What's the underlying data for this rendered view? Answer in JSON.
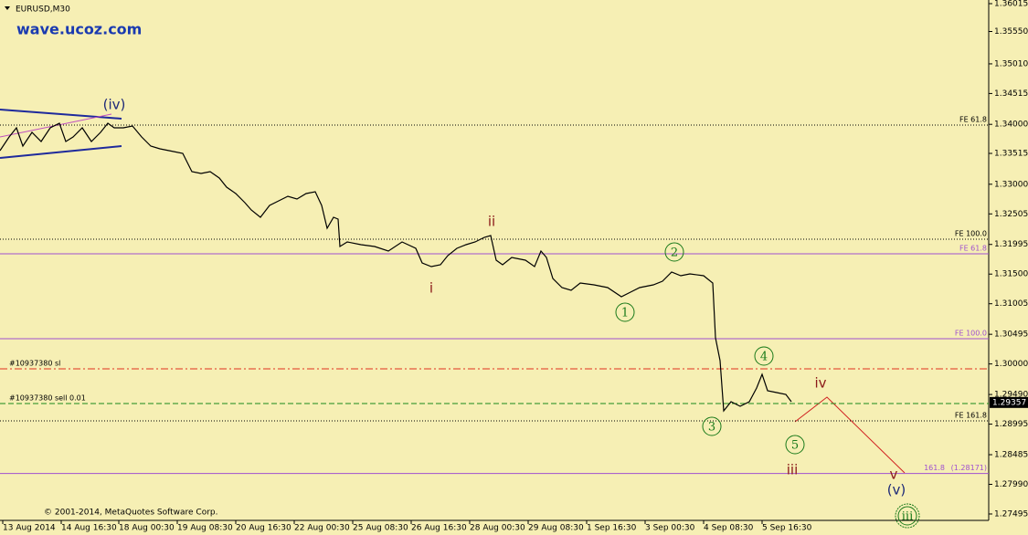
{
  "chart_data": {
    "type": "line",
    "title": "EURUSD,M30",
    "watermark": "wave.ucoz.com",
    "copyright": "© 2001-2014, MetaQuotes Software Corp.",
    "background": "#f6efb4",
    "xlim": [
      0,
      1082
    ],
    "ylim": [
      1.27388,
      1.36076
    ],
    "xticks": [
      {
        "value": 3,
        "label": "13 Aug 2014"
      },
      {
        "value": 67,
        "label": "14 Aug 16:30"
      },
      {
        "value": 130,
        "label": "18 Aug 00:30"
      },
      {
        "value": 194,
        "label": "19 Aug 08:30"
      },
      {
        "value": 258,
        "label": "20 Aug 16:30"
      },
      {
        "value": 322,
        "label": "22 Aug 00:30"
      },
      {
        "value": 386,
        "label": "25 Aug 08:30"
      },
      {
        "value": 450,
        "label": "26 Aug 16:30"
      },
      {
        "value": 514,
        "label": "28 Aug 00:30"
      },
      {
        "value": 578,
        "label": "29 Aug 08:30"
      },
      {
        "value": 642,
        "label": "1 Sep 16:30"
      },
      {
        "value": 706,
        "label": "3 Sep 00:30"
      },
      {
        "value": 770,
        "label": "4 Sep 08:30"
      },
      {
        "value": 834,
        "label": "5 Sep 16:30"
      }
    ],
    "yticks": [
      1.36015,
      {
        "value": 1.3555,
        "label": "1.35550"
      },
      {
        "value": 1.3501,
        "label": "1.35010"
      },
      1.34515,
      {
        "value": 1.34,
        "label": "1.34000"
      },
      1.33515,
      {
        "value": 1.33,
        "label": "1.33000"
      },
      1.32505,
      1.31995,
      {
        "value": 1.315,
        "label": "1.31500"
      },
      1.31005,
      1.30495,
      {
        "value": 1.3,
        "label": "1.30000"
      },
      {
        "value": 1.2949,
        "label": "1.29490"
      },
      1.28995,
      1.28485,
      {
        "value": 1.2799,
        "label": "1.27990"
      },
      1.27495
    ],
    "current_price": 1.29357,
    "series": [
      {
        "name": "EURUSD",
        "color": "#000000",
        "x": [
          0,
          10,
          18,
          25,
          35,
          45,
          55,
          65,
          72,
          80,
          90,
          100,
          110,
          118,
          125,
          135,
          145,
          155,
          165,
          175,
          185,
          200,
          210,
          220,
          230,
          240,
          248,
          258,
          268,
          275,
          285,
          295,
          305,
          315,
          325,
          335,
          345,
          352,
          358,
          365,
          370,
          372,
          380,
          395,
          410,
          425,
          440,
          455,
          462,
          472,
          482,
          490,
          500,
          510,
          520,
          530,
          537,
          543,
          550,
          560,
          575,
          585,
          592,
          598,
          605,
          615,
          625,
          635,
          650,
          665,
          680,
          690,
          700,
          715,
          725,
          735,
          745,
          755,
          770,
          780,
          783,
          788,
          792,
          800,
          810,
          820,
          828,
          834,
          840,
          850,
          860,
          866
        ],
        "values": [
          1.33561,
          1.3379,
          1.33942,
          1.33637,
          1.33866,
          1.33714,
          1.33942,
          1.34018,
          1.33714,
          1.3379,
          1.33942,
          1.33714,
          1.33866,
          1.34018,
          1.33942,
          1.33942,
          1.33973,
          1.3379,
          1.33637,
          1.33592,
          1.33561,
          1.33515,
          1.3321,
          1.3318,
          1.3321,
          1.33104,
          1.32951,
          1.32845,
          1.32692,
          1.3257,
          1.32448,
          1.32647,
          1.32723,
          1.32799,
          1.32753,
          1.32845,
          1.32875,
          1.32647,
          1.32265,
          1.32448,
          1.32418,
          1.31961,
          1.32037,
          1.31991,
          1.31961,
          1.31884,
          1.32037,
          1.3193,
          1.31686,
          1.31625,
          1.31656,
          1.31808,
          1.3193,
          1.31991,
          1.32037,
          1.32113,
          1.32144,
          1.31732,
          1.31656,
          1.31778,
          1.31732,
          1.31625,
          1.31884,
          1.31778,
          1.31427,
          1.31275,
          1.31229,
          1.31351,
          1.3132,
          1.31275,
          1.31122,
          1.31199,
          1.31275,
          1.3132,
          1.31381,
          1.31534,
          1.31473,
          1.31503,
          1.31473,
          1.31351,
          1.30436,
          1.30055,
          1.29217,
          1.2937,
          1.29293,
          1.2937,
          1.29598,
          1.29827,
          1.29552,
          1.29522,
          1.29491,
          1.2937
        ]
      }
    ],
    "levels": [
      {
        "name": "FE 61.8",
        "value": 1.33988,
        "color": "#000000",
        "style": "dotted",
        "side": "right"
      },
      {
        "name": "FE 100.0",
        "value": 1.32083,
        "color": "#000000",
        "style": "dotted",
        "side": "right"
      },
      {
        "name": "FE 61.8",
        "value": 1.31839,
        "color": "#a050d0",
        "style": "solid",
        "side": "right"
      },
      {
        "name": "FE 100.0",
        "value": 1.30421,
        "color": "#a050d0",
        "style": "solid",
        "side": "right"
      },
      {
        "name": "#10937380 sl",
        "value": 1.29918,
        "color": "#e0301e",
        "style": "dashdot",
        "side": "left"
      },
      {
        "name": "#10937380 sell 0.01",
        "value": 1.29339,
        "color": "#1a8a1a",
        "style": "dashed",
        "side": "left"
      },
      {
        "name": "FE 161.8",
        "value": 1.29049,
        "color": "#000000",
        "style": "dotted",
        "side": "right"
      },
      {
        "name": "161.8",
        "value": 1.28171,
        "value_label": "(1.28171)",
        "color": "#a050d0",
        "style": "solid",
        "side": "right"
      }
    ],
    "annotations": [
      {
        "text": "(iv)",
        "color": "#1e2a78",
        "style": "plain"
      },
      {
        "text": "ii",
        "color": "#8b1a1a",
        "style": "plain"
      },
      {
        "text": "i",
        "color": "#8b1a1a",
        "style": "plain"
      },
      {
        "text": "2",
        "color": "#1a7a1a",
        "style": "circle"
      },
      {
        "text": "1",
        "color": "#1a7a1a",
        "style": "circle"
      },
      {
        "text": "3",
        "color": "#1a7a1a",
        "style": "circle"
      },
      {
        "text": "4",
        "color": "#1a7a1a",
        "style": "circle"
      },
      {
        "text": "5",
        "color": "#1a7a1a",
        "style": "circle"
      },
      {
        "text": "iv",
        "color": "#8b1a1a",
        "style": "plain"
      },
      {
        "text": "iii",
        "color": "#8b1a1a",
        "style": "plain"
      },
      {
        "text": "v",
        "color": "#8b1a1a",
        "style": "plain"
      },
      {
        "text": "(v)",
        "color": "#1e2a78",
        "style": "plain"
      },
      {
        "text": "iii",
        "color": "#1a7a1a",
        "style": "double-circle"
      }
    ]
  }
}
